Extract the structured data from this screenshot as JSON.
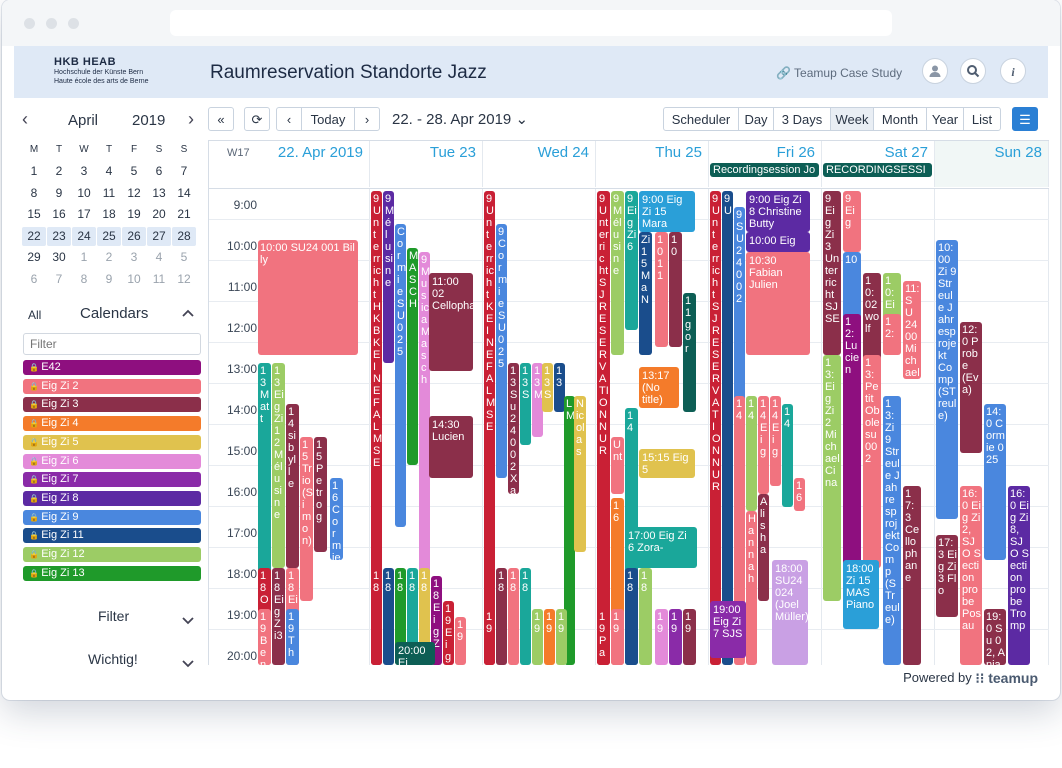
{
  "header": {
    "logo_line1": "HKB  HEAB",
    "logo_line2": "Hochschule der Künste Bern",
    "logo_line3": "Haute école des arts de Berne",
    "title": "Raumreservation Standorte Jazz",
    "case_study": "🔗 Teamup Case Study"
  },
  "minical": {
    "month": "April",
    "year": "2019",
    "weekdays": [
      "M",
      "T",
      "W",
      "T",
      "F",
      "S",
      "S"
    ],
    "weeks": [
      [
        "1",
        "2",
        "3",
        "4",
        "5",
        "6",
        "7"
      ],
      [
        "8",
        "9",
        "10",
        "11",
        "12",
        "13",
        "14"
      ],
      [
        "15",
        "16",
        "17",
        "18",
        "19",
        "20",
        "21"
      ],
      [
        "22",
        "23",
        "24",
        "25",
        "26",
        "27",
        "28"
      ],
      [
        "29",
        "30",
        "1",
        "2",
        "3",
        "4",
        "5"
      ],
      [
        "6",
        "7",
        "8",
        "9",
        "10",
        "11",
        "12"
      ]
    ]
  },
  "calendars": {
    "all_label": "All",
    "title": "Calendars",
    "filter_placeholder": "Filter",
    "items": [
      {
        "name": "E42",
        "color": "#8e0f7f"
      },
      {
        "name": "Eig Zi 2",
        "color": "#f1737f"
      },
      {
        "name": "Eig Zi 3",
        "color": "#8b2f4a"
      },
      {
        "name": "Eig Zi 4",
        "color": "#f47b2a"
      },
      {
        "name": "Eig Zi 5",
        "color": "#e0c24e"
      },
      {
        "name": "Eig Zi 6",
        "color": "#e38ad9"
      },
      {
        "name": "Eig Zi 7",
        "color": "#8a2ba8"
      },
      {
        "name": "Eig Zi 8",
        "color": "#5c2aa3"
      },
      {
        "name": "Eig Zi 9",
        "color": "#4a87de"
      },
      {
        "name": "Eig Zi 11",
        "color": "#1a4d8c"
      },
      {
        "name": "Eig Zi 12",
        "color": "#9ccc65"
      },
      {
        "name": "Eig Zi 13",
        "color": "#1f9a2a"
      }
    ],
    "filter_section": "Filter",
    "important_section": "Wichtig!"
  },
  "toolbar": {
    "today": "Today",
    "range": "22. - 28. Apr 2019",
    "views": [
      "Scheduler",
      "Day",
      "3 Days",
      "Week",
      "Month",
      "Year",
      "List"
    ],
    "active_view": "Week"
  },
  "week": {
    "label": "W17",
    "days": [
      "22. Apr 2019",
      "Tue 23",
      "Wed 24",
      "Thu 25",
      "Fri 26",
      "Sat 27",
      "Sun 28"
    ],
    "hours": [
      "9:00",
      "10:00",
      "11:00",
      "12:00",
      "13:00",
      "14:00",
      "15:00",
      "16:00",
      "17:00",
      "18:00",
      "19:00",
      "20:00"
    ],
    "allday": [
      {
        "day": 4,
        "text": "Recordingsession Jo"
      },
      {
        "day": 5,
        "text": "RECORDINGSESSI"
      }
    ]
  },
  "events": [
    {
      "d": 0,
      "o": 0,
      "w": 100,
      "s": 10.0,
      "e": 12.8,
      "c": "#f1737f",
      "t": "10:00 SU24 001 Billy"
    },
    {
      "d": 0,
      "o": 0,
      "w": 13,
      "s": 13.0,
      "e": 18.5,
      "c": "#1aa79a",
      "t": "13 M att"
    },
    {
      "d": 0,
      "o": 14,
      "w": 13,
      "s": 13.0,
      "e": 18.0,
      "c": "#9ccc65",
      "t": "13 Eig Zi 12 Mélusine"
    },
    {
      "d": 0,
      "o": 28,
      "w": 13,
      "s": 14.0,
      "e": 18.0,
      "c": "#8b2f4a",
      "t": "14 si byll e"
    },
    {
      "d": 0,
      "o": 42,
      "w": 13,
      "s": 14.8,
      "e": 18.8,
      "c": "#f1737f",
      "t": "15 Tr io (Si mo n)"
    },
    {
      "d": 0,
      "o": 56,
      "w": 13,
      "s": 14.8,
      "e": 17.6,
      "c": "#8b2f4a",
      "t": "15 Pe tr og"
    },
    {
      "d": 0,
      "o": 72,
      "w": 13,
      "s": 15.8,
      "e": 17.8,
      "c": "#4a87de",
      "t": "16 Co rmie"
    },
    {
      "d": 0,
      "o": 0,
      "w": 13,
      "s": 18.0,
      "e": 20.6,
      "c": "#c92035",
      "t": "18 Oc ta nt et"
    },
    {
      "d": 0,
      "o": 14,
      "w": 13,
      "s": 18.0,
      "e": 20.6,
      "c": "#8b2f4a",
      "t": "18 Ei gZ i3"
    },
    {
      "d": 0,
      "o": 28,
      "w": 13,
      "s": 18.0,
      "e": 20.6,
      "c": "#f1737f",
      "t": "18 Ei g Zi"
    },
    {
      "d": 0,
      "o": 0,
      "w": 13,
      "s": 19.0,
      "e": 20.6,
      "c": "#f1737f",
      "t": "19 Be n"
    },
    {
      "d": 0,
      "o": 28,
      "w": 13,
      "s": 19.0,
      "e": 20.6,
      "c": "#4a87de",
      "t": "19 Th"
    },
    {
      "d": 1,
      "o": 0,
      "w": 11,
      "s": 8.8,
      "e": 20.6,
      "c": "#c92035",
      "t": "9 Unterricht HKB KEINE FALMSE"
    },
    {
      "d": 1,
      "o": 12,
      "w": 11,
      "s": 8.8,
      "e": 13.0,
      "c": "#5c2aa3",
      "t": "9 Mélusine"
    },
    {
      "d": 1,
      "o": 24,
      "w": 11,
      "s": 9.6,
      "e": 17.0,
      "c": "#4a87de",
      "t": "Cormie SU 025"
    },
    {
      "d": 1,
      "o": 36,
      "w": 11,
      "s": 10.2,
      "e": 15.5,
      "c": "#1f9a2a",
      "t": "MAS CH"
    },
    {
      "d": 1,
      "o": 48,
      "w": 11,
      "s": 10.3,
      "e": 20.6,
      "c": "#e38ad9",
      "t": "9 M us ic a Masch"
    },
    {
      "d": 1,
      "o": 58,
      "w": 44,
      "s": 10.8,
      "e": 13.2,
      "c": "#8b2f4a",
      "t": "11:00 02 Cellophane",
      "wide": true
    },
    {
      "d": 1,
      "o": 58,
      "w": 44,
      "s": 14.3,
      "e": 15.8,
      "c": "#8b2f4a",
      "t": "14:30 Lucien",
      "wide": true
    },
    {
      "d": 1,
      "o": 0,
      "w": 11,
      "s": 18.0,
      "e": 20.6,
      "c": "#c92035",
      "t": "18"
    },
    {
      "d": 1,
      "o": 12,
      "w": 11,
      "s": 18.0,
      "e": 20.6,
      "c": "#1a4d8c",
      "t": "18"
    },
    {
      "d": 1,
      "o": 24,
      "w": 11,
      "s": 18.0,
      "e": 20.6,
      "c": "#1f9a2a",
      "t": "18"
    },
    {
      "d": 1,
      "o": 36,
      "w": 11,
      "s": 18.0,
      "e": 20.6,
      "c": "#1aa79a",
      "t": "18"
    },
    {
      "d": 1,
      "o": 48,
      "w": 11,
      "s": 18.0,
      "e": 20.6,
      "c": "#e0c24e",
      "t": "18"
    },
    {
      "d": 1,
      "o": 60,
      "w": 11,
      "s": 18.2,
      "e": 20.6,
      "c": "#8e0f7f",
      "t": "18 Eig Zi"
    },
    {
      "d": 1,
      "o": 72,
      "w": 11,
      "s": 18.8,
      "e": 20.6,
      "c": "#c92035",
      "t": "19 Eig"
    },
    {
      "d": 1,
      "o": 84,
      "w": 11,
      "s": 19.2,
      "e": 20.6,
      "c": "#f1737f",
      "t": "19"
    },
    {
      "d": 1,
      "o": 24,
      "w": 40,
      "s": 19.8,
      "e": 20.6,
      "c": "#0d5e55",
      "t": "20:00 Ei",
      "wide": true
    },
    {
      "d": 2,
      "o": 0,
      "w": 11,
      "s": 8.8,
      "e": 20.6,
      "c": "#c92035",
      "t": "9 Unterricht KEINE FALMSE"
    },
    {
      "d": 2,
      "o": 12,
      "w": 11,
      "s": 9.6,
      "e": 15.8,
      "c": "#4a87de",
      "t": "9 Cormie SU 025"
    },
    {
      "d": 2,
      "o": 24,
      "w": 11,
      "s": 13.0,
      "e": 16.2,
      "c": "#8b2f4a",
      "t": "13 Su 240 02 Xa"
    },
    {
      "d": 2,
      "o": 36,
      "w": 11,
      "s": 13.0,
      "e": 15.0,
      "c": "#1aa79a",
      "t": "13 S"
    },
    {
      "d": 2,
      "o": 48,
      "w": 11,
      "s": 13.0,
      "e": 14.8,
      "c": "#e38ad9",
      "t": "13 M"
    },
    {
      "d": 2,
      "o": 58,
      "w": 11,
      "s": 13.0,
      "e": 14.2,
      "c": "#e0c24e",
      "t": "13 S"
    },
    {
      "d": 2,
      "o": 70,
      "w": 11,
      "s": 13.0,
      "e": 14.2,
      "c": "#1a4d8c",
      "t": "13"
    },
    {
      "d": 2,
      "o": 80,
      "w": 11,
      "s": 13.8,
      "e": 20.6,
      "c": "#1f9a2a",
      "t": "L M"
    },
    {
      "d": 2,
      "o": 90,
      "w": 12,
      "s": 13.8,
      "e": 17.6,
      "c": "#e0c24e",
      "t": "Nic olas"
    },
    {
      "d": 2,
      "o": 0,
      "w": 11,
      "s": 19.0,
      "e": 20.6,
      "c": "#c92035",
      "t": "19"
    },
    {
      "d": 2,
      "o": 12,
      "w": 11,
      "s": 18.0,
      "e": 20.6,
      "c": "#8b2f4a",
      "t": "18"
    },
    {
      "d": 2,
      "o": 24,
      "w": 11,
      "s": 18.0,
      "e": 20.6,
      "c": "#f1737f",
      "t": "18"
    },
    {
      "d": 2,
      "o": 36,
      "w": 11,
      "s": 18.0,
      "e": 20.6,
      "c": "#1aa79a",
      "t": "18"
    },
    {
      "d": 2,
      "o": 48,
      "w": 11,
      "s": 19.0,
      "e": 20.6,
      "c": "#9ccc65",
      "t": "19"
    },
    {
      "d": 2,
      "o": 60,
      "w": 11,
      "s": 19.0,
      "e": 20.6,
      "c": "#f47b2a",
      "t": "19"
    },
    {
      "d": 2,
      "o": 72,
      "w": 11,
      "s": 19.0,
      "e": 20.6,
      "c": "#9ccc65",
      "t": "19"
    },
    {
      "d": 3,
      "o": 0,
      "w": 13,
      "s": 8.8,
      "e": 20.6,
      "c": "#c92035",
      "t": "9 Unterricht SJ RESERVATION NUR"
    },
    {
      "d": 3,
      "o": 14,
      "w": 13,
      "s": 8.8,
      "e": 12.8,
      "c": "#9ccc65",
      "t": "9 Mélusine"
    },
    {
      "d": 3,
      "o": 28,
      "w": 13,
      "s": 8.8,
      "e": 12.2,
      "c": "#1aa79a",
      "t": "9 Eig Zi 6"
    },
    {
      "d": 3,
      "o": 42,
      "w": 56,
      "s": 8.8,
      "e": 9.8,
      "c": "#2a9fd8",
      "t": "9:00 Eig Zi 15 Mara",
      "wide": true
    },
    {
      "d": 3,
      "o": 42,
      "w": 13,
      "s": 9.8,
      "e": 12.8,
      "c": "#1a4d8c",
      "t": "Zi 15 Ma N"
    },
    {
      "d": 3,
      "o": 58,
      "w": 13,
      "s": 9.8,
      "e": 12.6,
      "c": "#f1737f",
      "t": "10 11"
    },
    {
      "d": 3,
      "o": 72,
      "w": 13,
      "s": 9.8,
      "e": 12.6,
      "c": "#8b2f4a",
      "t": "10"
    },
    {
      "d": 3,
      "o": 86,
      "w": 13,
      "s": 11.3,
      "e": 14.2,
      "c": "#0d5e55",
      "t": "11 go r"
    },
    {
      "d": 3,
      "o": 42,
      "w": 40,
      "s": 13.1,
      "e": 14.1,
      "c": "#f47b2a",
      "t": "13:17 (No title)",
      "wide": true
    },
    {
      "d": 3,
      "o": 14,
      "w": 13,
      "s": 14.8,
      "e": 16.2,
      "c": "#f1737f",
      "t": "Unt"
    },
    {
      "d": 3,
      "o": 28,
      "w": 13,
      "s": 14.1,
      "e": 20.6,
      "c": "#1aa79a",
      "t": "14"
    },
    {
      "d": 3,
      "o": 42,
      "w": 56,
      "s": 15.1,
      "e": 15.8,
      "c": "#e0c24e",
      "t": "15:15 Eig 5",
      "wide": true
    },
    {
      "d": 3,
      "o": 14,
      "w": 13,
      "s": 16.3,
      "e": 20.6,
      "c": "#f47b2a",
      "t": "16"
    },
    {
      "d": 3,
      "o": 28,
      "w": 72,
      "s": 17.0,
      "e": 18.0,
      "c": "#1aa79a",
      "t": "17:00 Eig Zi 6 Zora-",
      "wide": true
    },
    {
      "d": 3,
      "o": 0,
      "w": 13,
      "s": 19.0,
      "e": 20.6,
      "c": "#c92035",
      "t": "19 P a"
    },
    {
      "d": 3,
      "o": 14,
      "w": 13,
      "s": 19.0,
      "e": 20.6,
      "c": "#f1737f",
      "t": "19"
    },
    {
      "d": 3,
      "o": 28,
      "w": 13,
      "s": 18.0,
      "e": 20.6,
      "c": "#1a4d8c",
      "t": "18"
    },
    {
      "d": 3,
      "o": 42,
      "w": 13,
      "s": 18.0,
      "e": 20.6,
      "c": "#9ccc65",
      "t": "18"
    },
    {
      "d": 3,
      "o": 58,
      "w": 13,
      "s": 19.0,
      "e": 20.6,
      "c": "#e38ad9",
      "t": "19"
    },
    {
      "d": 3,
      "o": 72,
      "w": 13,
      "s": 19.0,
      "e": 20.6,
      "c": "#8a2ba8",
      "t": "19"
    },
    {
      "d": 3,
      "o": 86,
      "w": 13,
      "s": 19.0,
      "e": 20.6,
      "c": "#8b2f4a",
      "t": "19"
    },
    {
      "d": 4,
      "o": 0,
      "w": 11,
      "s": 8.8,
      "e": 20.6,
      "c": "#c92035",
      "t": "9 Unterricht SJ RESERVATION NUR"
    },
    {
      "d": 4,
      "o": 12,
      "w": 11,
      "s": 8.8,
      "e": 20.6,
      "c": "#1a4d8c",
      "t": "9 U"
    },
    {
      "d": 4,
      "o": 24,
      "w": 11,
      "s": 9.2,
      "e": 16.0,
      "c": "#4a87de",
      "t": "9 SU 24 00 2"
    },
    {
      "d": 4,
      "o": 36,
      "w": 64,
      "s": 8.8,
      "e": 9.8,
      "c": "#5c2aa3",
      "t": "9:00 Eig Zi 8 Christine Butty",
      "wide": true
    },
    {
      "d": 4,
      "o": 36,
      "w": 64,
      "s": 9.8,
      "e": 10.3,
      "c": "#5c2aa3",
      "t": "10:00 Eig",
      "wide": true
    },
    {
      "d": 4,
      "o": 36,
      "w": 64,
      "s": 10.3,
      "e": 12.8,
      "c": "#f1737f",
      "t": "10:30 Fabian Julien",
      "wide": true
    },
    {
      "d": 4,
      "o": 24,
      "w": 11,
      "s": 13.8,
      "e": 20.6,
      "c": "#f1737f",
      "t": "14"
    },
    {
      "d": 4,
      "o": 36,
      "w": 11,
      "s": 13.8,
      "e": 16.6,
      "c": "#9ccc65",
      "t": "14"
    },
    {
      "d": 4,
      "o": 48,
      "w": 11,
      "s": 13.8,
      "e": 16.2,
      "c": "#f1737f",
      "t": "14 Eig"
    },
    {
      "d": 4,
      "o": 60,
      "w": 11,
      "s": 13.8,
      "e": 16.0,
      "c": "#f1737f",
      "t": "14 Eig"
    },
    {
      "d": 4,
      "o": 72,
      "w": 11,
      "s": 14.0,
      "e": 16.5,
      "c": "#1aa79a",
      "t": "14"
    },
    {
      "d": 4,
      "o": 84,
      "w": 11,
      "s": 15.8,
      "e": 16.6,
      "c": "#f1737f",
      "t": "16"
    },
    {
      "d": 4,
      "o": 36,
      "w": 11,
      "s": 16.6,
      "e": 20.6,
      "c": "#f1737f",
      "t": "Ha nn ah"
    },
    {
      "d": 4,
      "o": 48,
      "w": 11,
      "s": 16.2,
      "e": 18.8,
      "c": "#8b2f4a",
      "t": "Alis ha"
    },
    {
      "d": 4,
      "o": 0,
      "w": 36,
      "s": 18.8,
      "e": 20.2,
      "c": "#8a2ba8",
      "t": "19:00 Eig Zi 7 SJS",
      "wide": true
    },
    {
      "d": 4,
      "o": 62,
      "w": 36,
      "s": 17.8,
      "e": 20.6,
      "c": "#c9a0e4",
      "t": "18:00 SU24 024 (Joel Müller)",
      "wide": true
    },
    {
      "d": 5,
      "o": 0,
      "w": 18,
      "s": 8.8,
      "e": 12.8,
      "c": "#8b2f4a",
      "t": "9 Eig Zi 3 Unterricht SJ SE"
    },
    {
      "d": 5,
      "o": 20,
      "w": 18,
      "s": 8.8,
      "e": 10.3,
      "c": "#f1737f",
      "t": "9 Eig"
    },
    {
      "d": 5,
      "o": 20,
      "w": 18,
      "s": 10.3,
      "e": 12.6,
      "c": "#4a87de",
      "t": "10"
    },
    {
      "d": 5,
      "o": 40,
      "w": 18,
      "s": 10.8,
      "e": 13.0,
      "c": "#8b2f4a",
      "t": "10: 02 wolf"
    },
    {
      "d": 5,
      "o": 60,
      "w": 18,
      "s": 10.8,
      "e": 12.2,
      "c": "#9ccc65",
      "t": "10: Eig Zi"
    },
    {
      "d": 5,
      "o": 80,
      "w": 18,
      "s": 11.0,
      "e": 13.4,
      "c": "#f1737f",
      "t": "11: SU 24 00 Mich ael"
    },
    {
      "d": 5,
      "o": 20,
      "w": 18,
      "s": 11.8,
      "e": 18.0,
      "c": "#8e0f7f",
      "t": "12: Lucie n"
    },
    {
      "d": 5,
      "o": 0,
      "w": 18,
      "s": 12.8,
      "e": 18.8,
      "c": "#9ccc65",
      "t": "13: Eig Zi2 Michael Cina"
    },
    {
      "d": 5,
      "o": 40,
      "w": 18,
      "s": 12.8,
      "e": 18.0,
      "c": "#f1737f",
      "t": "13: Petit Obole su 002"
    },
    {
      "d": 5,
      "o": 60,
      "w": 18,
      "s": 13.8,
      "e": 20.6,
      "c": "#4a87de",
      "t": "13: Zi 9 Streule Jahresprojekt Comp (STreule)"
    },
    {
      "d": 5,
      "o": 60,
      "w": 18,
      "s": 11.8,
      "e": 12.8,
      "c": "#f1737f",
      "t": "12:"
    },
    {
      "d": 5,
      "o": 80,
      "w": 18,
      "s": 16.0,
      "e": 20.6,
      "c": "#8b2f4a",
      "t": "17:3 Cello phane"
    },
    {
      "d": 5,
      "o": 20,
      "w": 36,
      "s": 17.8,
      "e": 19.5,
      "c": "#2a9fd8",
      "t": "18:00 Zi 15 MAS Piano",
      "wide": true
    },
    {
      "d": 6,
      "o": 0,
      "w": 22,
      "s": 10.0,
      "e": 16.8,
      "c": "#4a87de",
      "t": "10:00 Zi 9 Streule Jahresprojekt Comp (STreule)"
    },
    {
      "d": 6,
      "o": 24,
      "w": 22,
      "s": 12.0,
      "e": 15.2,
      "c": "#8b2f4a",
      "t": "12:0 Probe (Eva)"
    },
    {
      "d": 6,
      "o": 48,
      "w": 22,
      "s": 14.0,
      "e": 17.8,
      "c": "#4a87de",
      "t": "14:0 Cormie 025"
    },
    {
      "d": 6,
      "o": 72,
      "w": 22,
      "s": 16.0,
      "e": 20.6,
      "c": "#5c2aa3",
      "t": "16:0 Eig Zi 8, SJO Section probe Tromp"
    },
    {
      "d": 6,
      "o": 24,
      "w": 22,
      "s": 16.0,
      "e": 20.6,
      "c": "#f1737f",
      "t": "16:0 Eig Zi 2, SJO Section probe Posau"
    },
    {
      "d": 6,
      "o": 0,
      "w": 22,
      "s": 17.2,
      "e": 19.2,
      "c": "#8b2f4a",
      "t": "17:3 Eig Zi3 Flo"
    },
    {
      "d": 6,
      "o": 48,
      "w": 22,
      "s": 19.0,
      "e": 20.6,
      "c": "#8b2f4a",
      "t": "19:0 Su 02, Ania"
    }
  ],
  "footer": {
    "powered": "Powered by",
    "brand": "teamup"
  }
}
